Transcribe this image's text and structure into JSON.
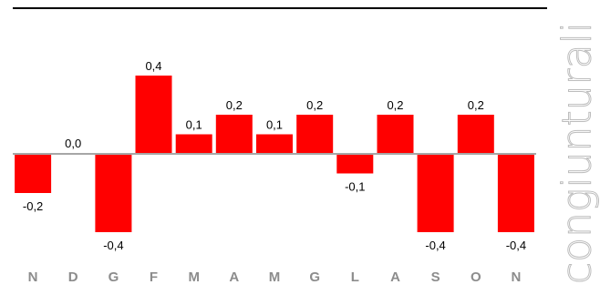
{
  "chart_data": {
    "type": "bar",
    "categories": [
      "N",
      "D",
      "G",
      "F",
      "M",
      "A",
      "M",
      "G",
      "L",
      "A",
      "S",
      "O",
      "N"
    ],
    "values": [
      -0.2,
      0.0,
      -0.4,
      0.4,
      0.1,
      0.2,
      0.1,
      0.2,
      -0.1,
      0.2,
      -0.4,
      0.2,
      -0.4
    ],
    "value_labels": [
      "-0,2",
      "0,0",
      "-0,4",
      "0,4",
      "0,1",
      "0,2",
      "0,1",
      "0,2",
      "-0,1",
      "0,2",
      "-0,4",
      "0,2",
      "-0,4"
    ],
    "title": "",
    "xlabel": "",
    "ylabel": "",
    "ylim": [
      -0.4,
      0.4
    ],
    "grid": false,
    "bar_color": "#ff0000",
    "zero_line_color": "#a6a6a6",
    "category_label_color": "#8c8c8c"
  },
  "side_label": "congiunturali"
}
